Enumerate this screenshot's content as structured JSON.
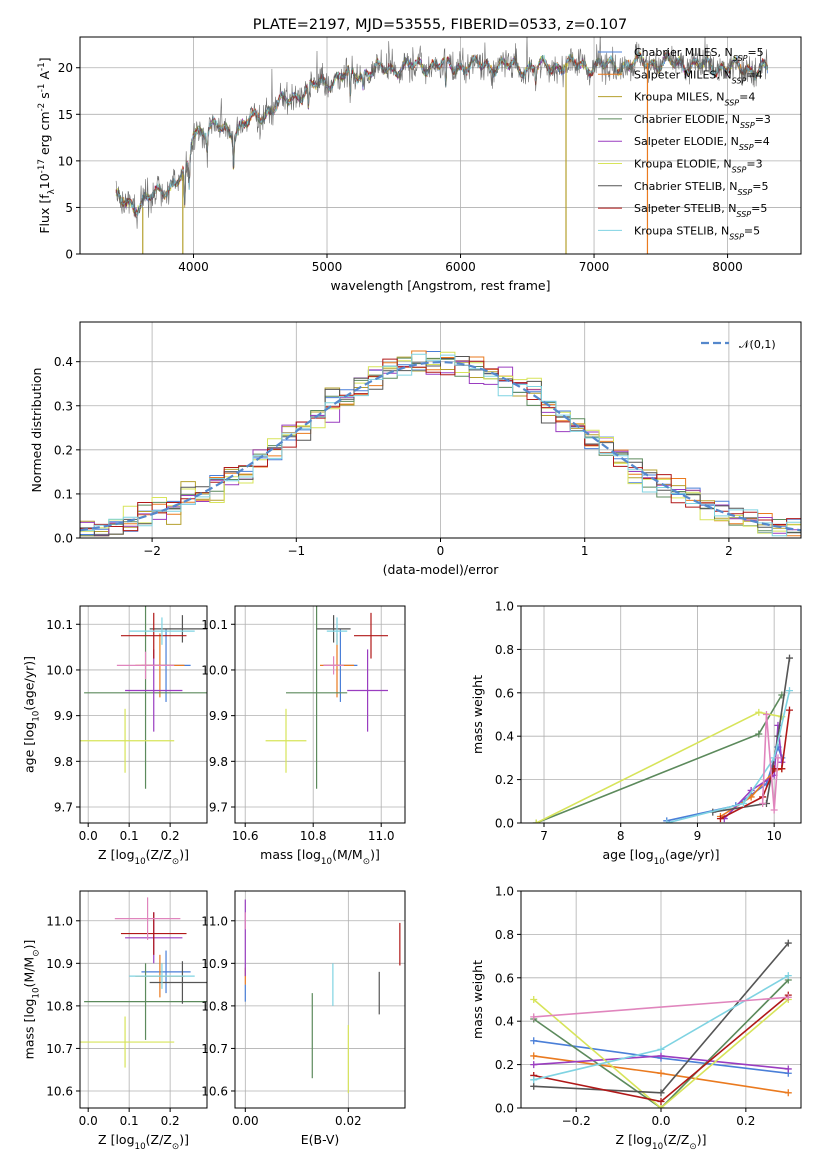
{
  "title": "PLATE=2197, MJD=53555, FIBERID=0533, z=0.107",
  "colors": {
    "chabrier_miles": "#4a7fd8",
    "salpeter_miles": "#ea7a1f",
    "kroupa_miles": "#b5a02e",
    "chabrier_elodie": "#5c8a5c",
    "salpeter_elodie": "#9a3dc0",
    "kroupa_elodie": "#d7e45a",
    "chabrier_stelib": "#555555",
    "salpeter_stelib": "#b01818",
    "kroupa_stelib": "#7fd3e2",
    "pink": "#e085bd",
    "normal": "#5588cc"
  },
  "chart_data": [
    {
      "id": "spectrum",
      "type": "line",
      "title": "PLATE=2197, MJD=53555, FIBERID=0533, z=0.107",
      "xlabel": "wavelength [Angstrom, rest frame]",
      "ylabel": "Flux [f$_\\lambda$10$^{-17}$ erg cm$^{-2}$ s$^{-1}$ A$^{-1}$]",
      "xlim": [
        3150,
        8550
      ],
      "ylim": [
        0,
        23.3
      ],
      "xticks": [
        4000,
        5000,
        6000,
        7000,
        8000
      ],
      "yticks": [
        0,
        5,
        10,
        15,
        20
      ],
      "continuum": [
        [
          3420,
          5.8
        ],
        [
          3550,
          5.2
        ],
        [
          3700,
          6.2
        ],
        [
          3850,
          7.6
        ],
        [
          3950,
          8.8
        ],
        [
          4000,
          13.2
        ],
        [
          4150,
          13.6
        ],
        [
          4300,
          13.2
        ],
        [
          4450,
          14.5
        ],
        [
          4700,
          16.5
        ],
        [
          4900,
          18.0
        ],
        [
          5100,
          19.0
        ],
        [
          5300,
          19.6
        ],
        [
          5500,
          20.0
        ],
        [
          5800,
          20.3
        ],
        [
          6000,
          20.2
        ],
        [
          6200,
          20.3
        ],
        [
          6500,
          20.0
        ],
        [
          6800,
          20.3
        ],
        [
          7100,
          20.2
        ],
        [
          7400,
          20.6
        ],
        [
          7700,
          20.4
        ],
        [
          8000,
          20.0
        ],
        [
          8300,
          19.8
        ]
      ],
      "absorption_features": [
        [
          3934,
          4.0
        ],
        [
          3968,
          3.5
        ],
        [
          4102,
          2.0
        ],
        [
          4300,
          3.0
        ],
        [
          4861,
          2.5
        ],
        [
          5175,
          3.0
        ],
        [
          5270,
          1.5
        ],
        [
          5890,
          3.0
        ],
        [
          6563,
          1.5
        ]
      ],
      "spikes": [
        {
          "x": 6790,
          "ymin": 0,
          "ymax": 20.5
        },
        {
          "x": 7400,
          "ymin": 0,
          "ymax": 20.5
        },
        {
          "x": 3920,
          "ymin": 0,
          "ymax": 8.5
        },
        {
          "x": 3620,
          "ymin": 0,
          "ymax": 5.0
        }
      ],
      "series": [
        {
          "name": "Chabrier MILES",
          "nssp": "5",
          "color": "#4a7fd8"
        },
        {
          "name": "Salpeter MILES",
          "nssp": "4",
          "color": "#ea7a1f"
        },
        {
          "name": "Kroupa MILES",
          "nssp": "4",
          "color": "#b5a02e"
        },
        {
          "name": "Chabrier ELODIE",
          "nssp": "3",
          "color": "#5c8a5c"
        },
        {
          "name": "Salpeter ELODIE",
          "nssp": "4",
          "color": "#9a3dc0"
        },
        {
          "name": "Kroupa ELODIE",
          "nssp": "3",
          "color": "#d7e45a"
        },
        {
          "name": "Chabrier STELIB",
          "nssp": "5",
          "color": "#555555"
        },
        {
          "name": "Salpeter STELIB",
          "nssp": "5",
          "color": "#b01818"
        },
        {
          "name": "Kroupa STELIB",
          "nssp": "5",
          "color": "#7fd3e2"
        }
      ],
      "legend": "right"
    },
    {
      "id": "residuals",
      "type": "histogram",
      "xlabel": "(data-model)/error",
      "ylabel": "Normed distribution",
      "xlim": [
        -2.5,
        2.5
      ],
      "ylim": [
        0,
        0.49
      ],
      "xticks": [
        -2,
        -1,
        0,
        1,
        2
      ],
      "yticks": [
        0.0,
        0.1,
        0.2,
        0.3,
        0.4
      ],
      "bin_width": 0.1,
      "reference": {
        "label": "$\\mathcal{N}(0,1)$",
        "mean": 0,
        "sigma": 1
      },
      "grid": true,
      "legend": "top-right"
    },
    {
      "id": "age_vs_Z",
      "type": "scatter",
      "xlabel": "Z [log$_{10}$(Z/Z$_\\odot$)]",
      "ylabel": "age  [log$_{10}$(age/yr)]",
      "xlim": [
        -0.02,
        0.29
      ],
      "ylim": [
        9.665,
        10.14
      ],
      "xticks": [
        0.0,
        0.1,
        0.2
      ],
      "yticks": [
        9.7,
        9.8,
        9.9,
        10.0,
        10.1
      ],
      "points": [
        {
          "color": "#4a7fd8",
          "x": 0.19,
          "xerr": 0.06,
          "y": 10.01,
          "yerr": 0.08
        },
        {
          "color": "#ea7a1f",
          "x": 0.175,
          "xerr": 0.06,
          "y": 10.01,
          "yerr": 0.07
        },
        {
          "color": "#5c8a5c",
          "x": 0.14,
          "xerr": 0.15,
          "y": 9.95,
          "yerr": 0.21
        },
        {
          "color": "#9a3dc0",
          "x": 0.16,
          "xerr": 0.07,
          "y": 9.955,
          "yerr": 0.09
        },
        {
          "color": "#d7e45a",
          "x": 0.09,
          "xerr": 0.12,
          "y": 9.845,
          "yerr": 0.07
        },
        {
          "color": "#555555",
          "x": 0.23,
          "xerr": 0.08,
          "y": 10.09,
          "yerr": 0.03
        },
        {
          "color": "#b01818",
          "x": 0.16,
          "xerr": 0.08,
          "y": 10.075,
          "yerr": 0.05
        },
        {
          "color": "#7fd3e2",
          "x": 0.18,
          "xerr": 0.08,
          "y": 10.085,
          "yerr": 0.03
        },
        {
          "color": "#e085bd",
          "x": 0.14,
          "xerr": 0.07,
          "y": 10.01,
          "yerr": 0.03
        }
      ]
    },
    {
      "id": "age_vs_mass",
      "type": "scatter",
      "xlabel": "mass [log$_{10}$(M/M$_\\odot$)]",
      "ylabel": "",
      "xlim": [
        10.57,
        11.07
      ],
      "ylim": [
        9.665,
        10.14
      ],
      "xticks": [
        10.6,
        10.8,
        11.0
      ],
      "yticks": [
        9.7,
        9.8,
        9.9,
        10.0,
        10.1
      ],
      "points": [
        {
          "color": "#4a7fd8",
          "x": 10.88,
          "xerr": 0.05,
          "y": 10.01,
          "yerr": 0.08
        },
        {
          "color": "#ea7a1f",
          "x": 10.87,
          "xerr": 0.05,
          "y": 10.01,
          "yerr": 0.07
        },
        {
          "color": "#5c8a5c",
          "x": 10.81,
          "xerr": 0.09,
          "y": 9.95,
          "yerr": 0.21
        },
        {
          "color": "#9a3dc0",
          "x": 10.96,
          "xerr": 0.06,
          "y": 9.955,
          "yerr": 0.09
        },
        {
          "color": "#d7e45a",
          "x": 10.72,
          "xerr": 0.06,
          "y": 9.845,
          "yerr": 0.07
        },
        {
          "color": "#555555",
          "x": 10.86,
          "xerr": 0.05,
          "y": 10.09,
          "yerr": 0.03
        },
        {
          "color": "#b01818",
          "x": 10.97,
          "xerr": 0.05,
          "y": 10.075,
          "yerr": 0.05
        },
        {
          "color": "#7fd3e2",
          "x": 10.87,
          "xerr": 0.03,
          "y": 10.085,
          "yerr": 0.03
        },
        {
          "color": "#e085bd",
          "x": 10.86,
          "xerr": 0.03,
          "y": 10.01,
          "yerr": 0.02
        }
      ]
    },
    {
      "id": "weight_vs_age",
      "type": "line",
      "xlabel": "age  [log$_{10}$(age/yr)]",
      "ylabel": "mass weight",
      "xlim": [
        6.7,
        10.35
      ],
      "ylim": [
        0,
        1.0
      ],
      "xticks": [
        7,
        8,
        9,
        10
      ],
      "yticks": [
        0.0,
        0.2,
        0.4,
        0.6,
        0.8,
        1.0
      ],
      "series": [
        {
          "color": "#4a7fd8",
          "points": [
            [
              8.6,
              0.01
            ],
            [
              9.5,
              0.08
            ],
            [
              9.9,
              0.18
            ],
            [
              10.05,
              0.35
            ],
            [
              10.1,
              0.3
            ]
          ]
        },
        {
          "color": "#ea7a1f",
          "points": [
            [
              9.3,
              0.03
            ],
            [
              9.7,
              0.12
            ],
            [
              10.0,
              0.24
            ],
            [
              10.1,
              0.25
            ]
          ]
        },
        {
          "color": "#5c8a5c",
          "points": [
            [
              6.9,
              0.0
            ],
            [
              9.8,
              0.41
            ],
            [
              10.1,
              0.59
            ]
          ]
        },
        {
          "color": "#9a3dc0",
          "points": [
            [
              9.35,
              0.02
            ],
            [
              9.7,
              0.15
            ],
            [
              10.0,
              0.22
            ],
            [
              10.05,
              0.45
            ],
            [
              10.1,
              0.28
            ]
          ]
        },
        {
          "color": "#d7e45a",
          "points": [
            [
              6.9,
              0.0
            ],
            [
              9.8,
              0.51
            ],
            [
              10.1,
              0.49
            ]
          ]
        },
        {
          "color": "#555555",
          "points": [
            [
              9.2,
              0.05
            ],
            [
              9.9,
              0.09
            ],
            [
              10.05,
              0.4
            ],
            [
              10.2,
              0.76
            ]
          ]
        },
        {
          "color": "#b01818",
          "points": [
            [
              9.3,
              0.02
            ],
            [
              9.85,
              0.12
            ],
            [
              10.0,
              0.25
            ],
            [
              10.1,
              0.25
            ],
            [
              10.2,
              0.52
            ]
          ]
        },
        {
          "color": "#7fd3e2",
          "points": [
            [
              8.6,
              0.0
            ],
            [
              9.6,
              0.09
            ],
            [
              10.0,
              0.3
            ],
            [
              10.2,
              0.61
            ]
          ]
        },
        {
          "color": "#e085bd",
          "points": [
            [
              9.85,
              0.09
            ],
            [
              9.9,
              0.5
            ],
            [
              10.0,
              0.06
            ],
            [
              10.05,
              0.3
            ]
          ]
        }
      ]
    },
    {
      "id": "mass_vs_Z",
      "type": "scatter",
      "xlabel": "Z [log$_{10}$(Z/Z$_\\odot$)]",
      "ylabel": "mass [log$_{10}$(M/M$_\\odot$)]",
      "xlim": [
        -0.02,
        0.29
      ],
      "ylim": [
        10.56,
        11.07
      ],
      "xticks": [
        0.0,
        0.1,
        0.2
      ],
      "yticks": [
        10.6,
        10.7,
        10.8,
        10.9,
        11.0
      ],
      "points": [
        {
          "color": "#4a7fd8",
          "x": 0.19,
          "xerr": 0.06,
          "y": 10.88,
          "yerr": 0.05
        },
        {
          "color": "#ea7a1f",
          "x": 0.175,
          "xerr": 0.06,
          "y": 10.87,
          "yerr": 0.05
        },
        {
          "color": "#5c8a5c",
          "x": 0.14,
          "xerr": 0.15,
          "y": 10.81,
          "yerr": 0.09
        },
        {
          "color": "#9a3dc0",
          "x": 0.16,
          "xerr": 0.07,
          "y": 10.96,
          "yerr": 0.06
        },
        {
          "color": "#d7e45a",
          "x": 0.09,
          "xerr": 0.12,
          "y": 10.715,
          "yerr": 0.06
        },
        {
          "color": "#555555",
          "x": 0.23,
          "xerr": 0.08,
          "y": 10.855,
          "yerr": 0.05
        },
        {
          "color": "#b01818",
          "x": 0.16,
          "xerr": 0.08,
          "y": 10.97,
          "yerr": 0.05
        },
        {
          "color": "#7fd3e2",
          "x": 0.18,
          "xerr": 0.08,
          "y": 10.87,
          "yerr": 0.03
        },
        {
          "color": "#e085bd",
          "x": 0.145,
          "xerr": 0.08,
          "y": 11.005,
          "yerr": 0.05
        }
      ]
    },
    {
      "id": "mass_vs_ebv",
      "type": "scatter",
      "xlabel": "E(B-V)",
      "ylabel": "",
      "xlim": [
        -0.002,
        0.031
      ],
      "ylim": [
        10.56,
        11.07
      ],
      "xticks": [
        0.0,
        0.02
      ],
      "yticks": [
        10.6,
        10.7,
        10.8,
        10.9,
        11.0
      ],
      "points": [
        {
          "color": "#4a7fd8",
          "x": 0.0,
          "xerr": 0,
          "y": 10.83,
          "yerr": 0.02
        },
        {
          "color": "#ea7a1f",
          "x": 0.0,
          "xerr": 0,
          "y": 10.87,
          "yerr": 0.02
        },
        {
          "color": "#5c8a5c",
          "x": 0.013,
          "xerr": 0,
          "y": 10.73,
          "yerr": 0.1
        },
        {
          "color": "#9a3dc0",
          "x": 0.0,
          "xerr": 0,
          "y": 10.96,
          "yerr": 0.09
        },
        {
          "color": "#d7e45a",
          "x": 0.02,
          "xerr": 0,
          "y": 10.675,
          "yerr": 0.08
        },
        {
          "color": "#555555",
          "x": 0.026,
          "xerr": 0,
          "y": 10.83,
          "yerr": 0.05
        },
        {
          "color": "#b01818",
          "x": 0.03,
          "xerr": 0,
          "y": 10.945,
          "yerr": 0.05
        },
        {
          "color": "#7fd3e2",
          "x": 0.017,
          "xerr": 0,
          "y": 10.85,
          "yerr": 0.05
        },
        {
          "color": "#e085bd",
          "x": 0.0,
          "xerr": 0,
          "y": 11.0,
          "yerr": 0.02
        }
      ]
    },
    {
      "id": "weight_vs_Z",
      "type": "line",
      "xlabel": "Z [log$_{10}$(Z/Z$_\\odot$)]",
      "ylabel": "mass weight",
      "xlim": [
        -0.33,
        0.33
      ],
      "ylim": [
        0,
        1.0
      ],
      "xticks": [
        -0.2,
        0.0,
        0.2
      ],
      "yticks": [
        0.0,
        0.2,
        0.4,
        0.6,
        0.8,
        1.0
      ],
      "series": [
        {
          "color": "#4a7fd8",
          "points": [
            [
              -0.3,
              0.31
            ],
            [
              0.0,
              0.23
            ],
            [
              0.3,
              0.16
            ]
          ]
        },
        {
          "color": "#ea7a1f",
          "points": [
            [
              -0.3,
              0.24
            ],
            [
              0.0,
              0.16
            ],
            [
              0.3,
              0.07
            ]
          ]
        },
        {
          "color": "#5c8a5c",
          "points": [
            [
              -0.3,
              0.41
            ],
            [
              0.0,
              0.0
            ],
            [
              0.3,
              0.59
            ]
          ]
        },
        {
          "color": "#9a3dc0",
          "points": [
            [
              -0.3,
              0.2
            ],
            [
              0.0,
              0.24
            ],
            [
              0.3,
              0.18
            ]
          ]
        },
        {
          "color": "#d7e45a",
          "points": [
            [
              -0.3,
              0.5
            ],
            [
              0.0,
              0.0
            ],
            [
              0.3,
              0.5
            ]
          ]
        },
        {
          "color": "#555555",
          "points": [
            [
              -0.3,
              0.1
            ],
            [
              0.0,
              0.07
            ],
            [
              0.3,
              0.76
            ]
          ]
        },
        {
          "color": "#b01818",
          "points": [
            [
              -0.3,
              0.15
            ],
            [
              0.0,
              0.03
            ],
            [
              0.3,
              0.52
            ]
          ]
        },
        {
          "color": "#7fd3e2",
          "points": [
            [
              -0.3,
              0.13
            ],
            [
              0.0,
              0.27
            ],
            [
              0.3,
              0.61
            ]
          ]
        },
        {
          "color": "#e085bd",
          "points": [
            [
              -0.3,
              0.42
            ],
            [
              0.3,
              0.51
            ]
          ]
        }
      ]
    }
  ]
}
